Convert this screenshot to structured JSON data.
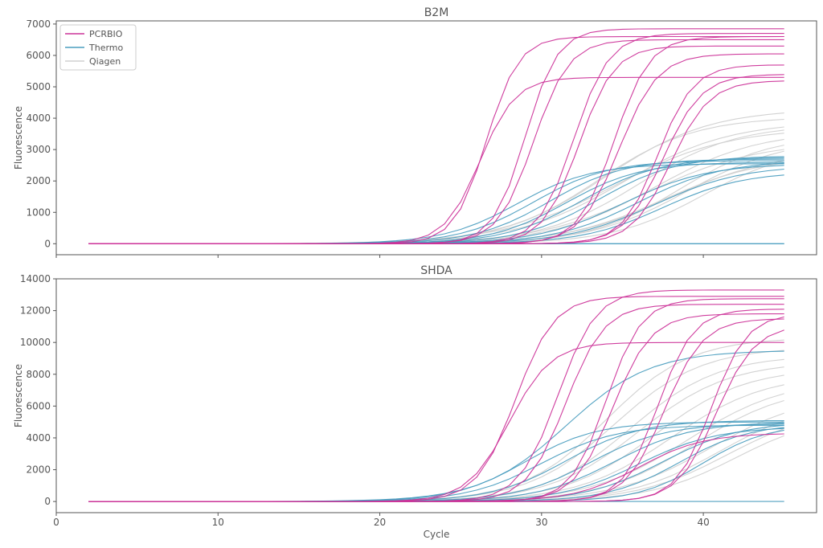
{
  "chart_data": [
    {
      "type": "line",
      "title": "B2M",
      "xlabel": "",
      "ylabel": "Fluorescence",
      "xlim": [
        0,
        47
      ],
      "ylim": [
        -350,
        7100
      ],
      "x_ticks": [
        0,
        10,
        20,
        30,
        40
      ],
      "x_tick_labels": [
        "",
        "",
        "",
        "",
        ""
      ],
      "y_ticks": [
        0,
        1000,
        2000,
        3000,
        4000,
        5000,
        6000,
        7000
      ],
      "y_tick_labels": [
        "0",
        "1000",
        "2000",
        "3000",
        "4000",
        "5000",
        "6000",
        "7000"
      ],
      "legend": {
        "placement": "top-left",
        "entries": [
          {
            "label": "PCRBIO",
            "color": "#cc3399"
          },
          {
            "label": "Thermo",
            "color": "#4a9dbf"
          },
          {
            "label": "Qiagen",
            "color": "#d0d0d0"
          }
        ]
      },
      "x_start": 2,
      "x_end": 45,
      "series_groups": [
        {
          "label": "Qiagen",
          "color": "#d0d0d0",
          "curves": [
            {
              "plateau": 4300,
              "midpoint": 34,
              "slope": 3.2
            },
            {
              "plateau": 4050,
              "midpoint": 33.5,
              "slope": 3.0
            },
            {
              "plateau": 3900,
              "midpoint": 35,
              "slope": 3.3
            },
            {
              "plateau": 3800,
              "midpoint": 36,
              "slope": 3.0
            },
            {
              "plateau": 3700,
              "midpoint": 34.5,
              "slope": 3.5
            },
            {
              "plateau": 3600,
              "midpoint": 37,
              "slope": 3.2
            },
            {
              "plateau": 3450,
              "midpoint": 38.5,
              "slope": 2.8
            },
            {
              "plateau": 3350,
              "midpoint": 39,
              "slope": 3.0
            },
            {
              "plateau": 3250,
              "midpoint": 36.5,
              "slope": 3.4
            },
            {
              "plateau": 3100,
              "midpoint": 40,
              "slope": 2.8
            },
            {
              "plateau": 2950,
              "midpoint": 38,
              "slope": 3.2
            },
            {
              "plateau": 2800,
              "midpoint": 37.5,
              "slope": 3.1
            }
          ]
        },
        {
          "label": "Thermo",
          "color": "#4a9dbf",
          "curves": [
            {
              "plateau": 2550,
              "midpoint": 28.5,
              "slope": 2.3
            },
            {
              "plateau": 2650,
              "midpoint": 29.5,
              "slope": 2.3
            },
            {
              "plateau": 2700,
              "midpoint": 30.5,
              "slope": 2.3
            },
            {
              "plateau": 2600,
              "midpoint": 31.5,
              "slope": 2.3
            },
            {
              "plateau": 2750,
              "midpoint": 32.5,
              "slope": 2.4
            },
            {
              "plateau": 2800,
              "midpoint": 33.5,
              "slope": 2.4
            },
            {
              "plateau": 2550,
              "midpoint": 35,
              "slope": 2.6
            },
            {
              "plateau": 2650,
              "midpoint": 36,
              "slope": 2.6
            },
            {
              "plateau": 2500,
              "midpoint": 37,
              "slope": 2.7
            },
            {
              "plateau": 2300,
              "midpoint": 37.5,
              "slope": 2.5
            },
            {
              "plateau": 0,
              "midpoint": 30,
              "slope": 2.0
            },
            {
              "plateau": 0,
              "midpoint": 30,
              "slope": 2.0
            }
          ]
        },
        {
          "label": "PCRBIO",
          "color": "#cc3399",
          "curves": [
            {
              "plateau": 5300,
              "midpoint": 26.2,
              "slope": 1.1
            },
            {
              "plateau": 6600,
              "midpoint": 26.6,
              "slope": 1.0
            },
            {
              "plateau": 6850,
              "midpoint": 29.0,
              "slope": 1.0
            },
            {
              "plateau": 6500,
              "midpoint": 29.5,
              "slope": 1.1
            },
            {
              "plateau": 6700,
              "midpoint": 32.0,
              "slope": 1.1
            },
            {
              "plateau": 6300,
              "midpoint": 32.3,
              "slope": 1.1
            },
            {
              "plateau": 6600,
              "midpoint": 34.5,
              "slope": 1.1
            },
            {
              "plateau": 6050,
              "midpoint": 34.8,
              "slope": 1.2
            },
            {
              "plateau": 5700,
              "midpoint": 37.2,
              "slope": 1.1
            },
            {
              "plateau": 5400,
              "midpoint": 37.5,
              "slope": 1.2
            },
            {
              "plateau": 5200,
              "midpoint": 38.0,
              "slope": 1.2
            }
          ]
        }
      ]
    },
    {
      "type": "line",
      "title": "SHDA",
      "xlabel": "Cycle",
      "ylabel": "Fluorescence",
      "xlim": [
        0,
        47
      ],
      "ylim": [
        -700,
        14000
      ],
      "x_ticks": [
        0,
        10,
        20,
        30,
        40
      ],
      "x_tick_labels": [
        "0",
        "10",
        "20",
        "30",
        "40"
      ],
      "y_ticks": [
        0,
        2000,
        4000,
        6000,
        8000,
        10000,
        12000,
        14000
      ],
      "y_tick_labels": [
        "0",
        "2000",
        "4000",
        "6000",
        "8000",
        "10000",
        "12000",
        "14000"
      ],
      "x_start": 2,
      "x_end": 45,
      "series_groups": [
        {
          "label": "Qiagen",
          "color": "#d0d0d0",
          "curves": [
            {
              "plateau": 10300,
              "midpoint": 34,
              "slope": 2.6
            },
            {
              "plateau": 9700,
              "midpoint": 34.5,
              "slope": 2.7
            },
            {
              "plateau": 9200,
              "midpoint": 35.5,
              "slope": 2.7
            },
            {
              "plateau": 8800,
              "midpoint": 36,
              "slope": 2.8
            },
            {
              "plateau": 8400,
              "midpoint": 37,
              "slope": 2.8
            },
            {
              "plateau": 8000,
              "midpoint": 38,
              "slope": 2.9
            },
            {
              "plateau": 7700,
              "midpoint": 39,
              "slope": 3.0
            },
            {
              "plateau": 7300,
              "midpoint": 39.5,
              "slope": 2.9
            },
            {
              "plateau": 6800,
              "midpoint": 40.5,
              "slope": 3.0
            },
            {
              "plateau": 6300,
              "midpoint": 41,
              "slope": 2.8
            },
            {
              "plateau": 5900,
              "midpoint": 41.5,
              "slope": 2.8
            },
            {
              "plateau": 5500,
              "midpoint": 42,
              "slope": 2.7
            }
          ]
        },
        {
          "label": "Thermo",
          "color": "#4a9dbf",
          "curves": [
            {
              "plateau": 9500,
              "midpoint": 31.5,
              "slope": 2.6
            },
            {
              "plateau": 5000,
              "midpoint": 29,
              "slope": 2.2
            },
            {
              "plateau": 4800,
              "midpoint": 30,
              "slope": 2.3
            },
            {
              "plateau": 5100,
              "midpoint": 31.5,
              "slope": 2.3
            },
            {
              "plateau": 4900,
              "midpoint": 33,
              "slope": 2.3
            },
            {
              "plateau": 5000,
              "midpoint": 34.5,
              "slope": 2.4
            },
            {
              "plateau": 4700,
              "midpoint": 36,
              "slope": 2.4
            },
            {
              "plateau": 5000,
              "midpoint": 37.5,
              "slope": 2.4
            },
            {
              "plateau": 4900,
              "midpoint": 38.5,
              "slope": 2.2
            },
            {
              "plateau": 4850,
              "midpoint": 40,
              "slope": 2.0
            },
            {
              "plateau": 0,
              "midpoint": 30,
              "slope": 2.0
            }
          ]
        },
        {
          "label": "PCRBIO",
          "color": "#cc3399",
          "curves": [
            {
              "plateau": 10000,
              "midpoint": 28.0,
              "slope": 1.3
            },
            {
              "plateau": 12900,
              "midpoint": 28.4,
              "slope": 1.2
            },
            {
              "plateau": 13300,
              "midpoint": 31.0,
              "slope": 1.2
            },
            {
              "plateau": 12400,
              "midpoint": 31.5,
              "slope": 1.2
            },
            {
              "plateau": 12750,
              "midpoint": 34.0,
              "slope": 1.1
            },
            {
              "plateau": 11800,
              "midpoint": 34.4,
              "slope": 1.2
            },
            {
              "plateau": 12100,
              "midpoint": 37.2,
              "slope": 1.1
            },
            {
              "plateau": 11500,
              "midpoint": 37.6,
              "slope": 1.2
            },
            {
              "plateau": 11800,
              "midpoint": 40.5,
              "slope": 1.1
            },
            {
              "plateau": 11100,
              "midpoint": 40.8,
              "slope": 1.2
            },
            {
              "plateau": 4300,
              "midpoint": 36.0,
              "slope": 2.0
            }
          ]
        }
      ]
    }
  ]
}
